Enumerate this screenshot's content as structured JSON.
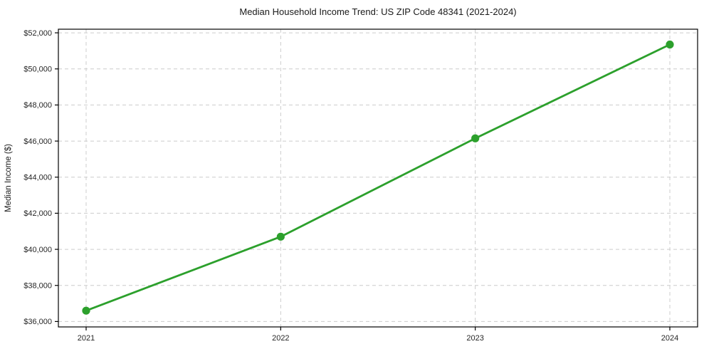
{
  "figure": {
    "background": "#ffffff"
  },
  "chart_data": {
    "type": "line",
    "title": "Median Household Income Trend: US ZIP Code 48341 (2021-2024)",
    "ylabel": "Median Income ($)",
    "xlabel": "",
    "categories": [
      2021,
      2022,
      2023,
      2024
    ],
    "x_tick_labels": [
      "2021",
      "2022",
      "2023",
      "2024"
    ],
    "values": [
      36600,
      40700,
      46150,
      51350
    ],
    "y_ticks": [
      36000,
      38000,
      40000,
      42000,
      44000,
      46000,
      48000,
      50000,
      52000
    ],
    "y_tick_labels": [
      "$36,000",
      "$38,000",
      "$40,000",
      "$42,000",
      "$44,000",
      "$46,000",
      "$48,000",
      "$50,000",
      "$52,000"
    ],
    "ylim": [
      35700,
      52200
    ],
    "grid": true,
    "grid_style": "dashed",
    "legend_position": "none",
    "line_color": "#2ca02c",
    "marker": "circle",
    "grid_color": "#cccccc",
    "spine_color": "#000000",
    "tick_color": "#262626"
  }
}
